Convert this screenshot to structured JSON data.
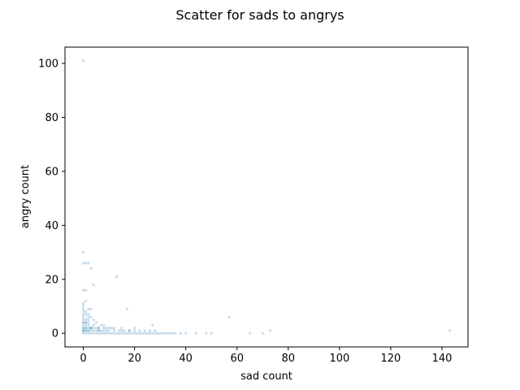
{
  "chart_data": {
    "type": "scatter",
    "title": "Scatter for sads to angrys",
    "xlabel": "sad count",
    "ylabel": "angry count",
    "xlim": [
      -7.15,
      150.15
    ],
    "ylim": [
      -5.05,
      106.05
    ],
    "xticks": [
      0,
      20,
      40,
      60,
      80,
      100,
      120,
      140
    ],
    "yticks": [
      0,
      20,
      40,
      60,
      80,
      100
    ],
    "grid": false,
    "point_color": "#1f77b4",
    "point_alpha": 0.25,
    "series": [
      {
        "x": [
          0,
          0,
          0,
          1,
          2,
          0,
          1,
          3,
          0,
          1,
          2,
          4,
          0,
          0,
          1,
          2,
          0,
          1,
          3,
          0,
          2,
          0,
          1,
          0,
          2,
          4,
          1,
          0,
          3,
          5,
          1,
          0,
          2,
          6,
          0,
          1,
          8,
          0,
          3,
          13,
          17,
          1,
          0,
          2,
          4,
          5,
          7,
          2,
          1,
          0,
          6,
          9,
          11,
          3,
          15,
          18,
          27,
          0,
          1,
          2,
          3,
          4,
          5,
          6,
          7,
          8,
          9,
          10,
          11,
          12,
          13,
          14,
          15,
          16,
          17,
          18,
          19,
          20,
          21,
          22,
          23,
          24,
          25,
          26,
          27,
          28,
          29,
          30,
          31,
          32,
          33,
          34,
          35,
          36,
          38,
          40,
          44,
          48,
          50,
          57,
          65,
          70,
          73,
          143,
          0,
          1,
          2,
          3,
          4,
          5,
          6,
          7,
          8,
          9,
          10,
          12,
          14,
          16,
          18,
          20,
          22,
          24,
          26,
          28,
          0,
          1,
          2,
          3,
          4,
          6,
          8,
          10,
          12,
          15,
          20
        ],
        "y": [
          101,
          30,
          26,
          26,
          26,
          16,
          16,
          24,
          11,
          12,
          9,
          18,
          8,
          7,
          8,
          6,
          6,
          5,
          6,
          5,
          4,
          4,
          4,
          3,
          3,
          3,
          3,
          2,
          2,
          2,
          2,
          1,
          1,
          1,
          1,
          1,
          3,
          9,
          9,
          21,
          9,
          7,
          10,
          7,
          5,
          4,
          3,
          5,
          4,
          4,
          2,
          2,
          2,
          2,
          1,
          1,
          3,
          0,
          0,
          0,
          0,
          0,
          0,
          0,
          0,
          0,
          0,
          0,
          0,
          0,
          0,
          0,
          0,
          0,
          0,
          0,
          0,
          0,
          0,
          0,
          0,
          0,
          0,
          0,
          0,
          0,
          0,
          0,
          0,
          0,
          0,
          0,
          0,
          0,
          0,
          0,
          0,
          0,
          0,
          6,
          0,
          0,
          1,
          1,
          1,
          1,
          1,
          1,
          1,
          1,
          1,
          1,
          1,
          1,
          1,
          1,
          1,
          1,
          1,
          1,
          1,
          1,
          1,
          1,
          2,
          2,
          2,
          2,
          2,
          2,
          2,
          2,
          2,
          2,
          2
        ]
      }
    ]
  }
}
